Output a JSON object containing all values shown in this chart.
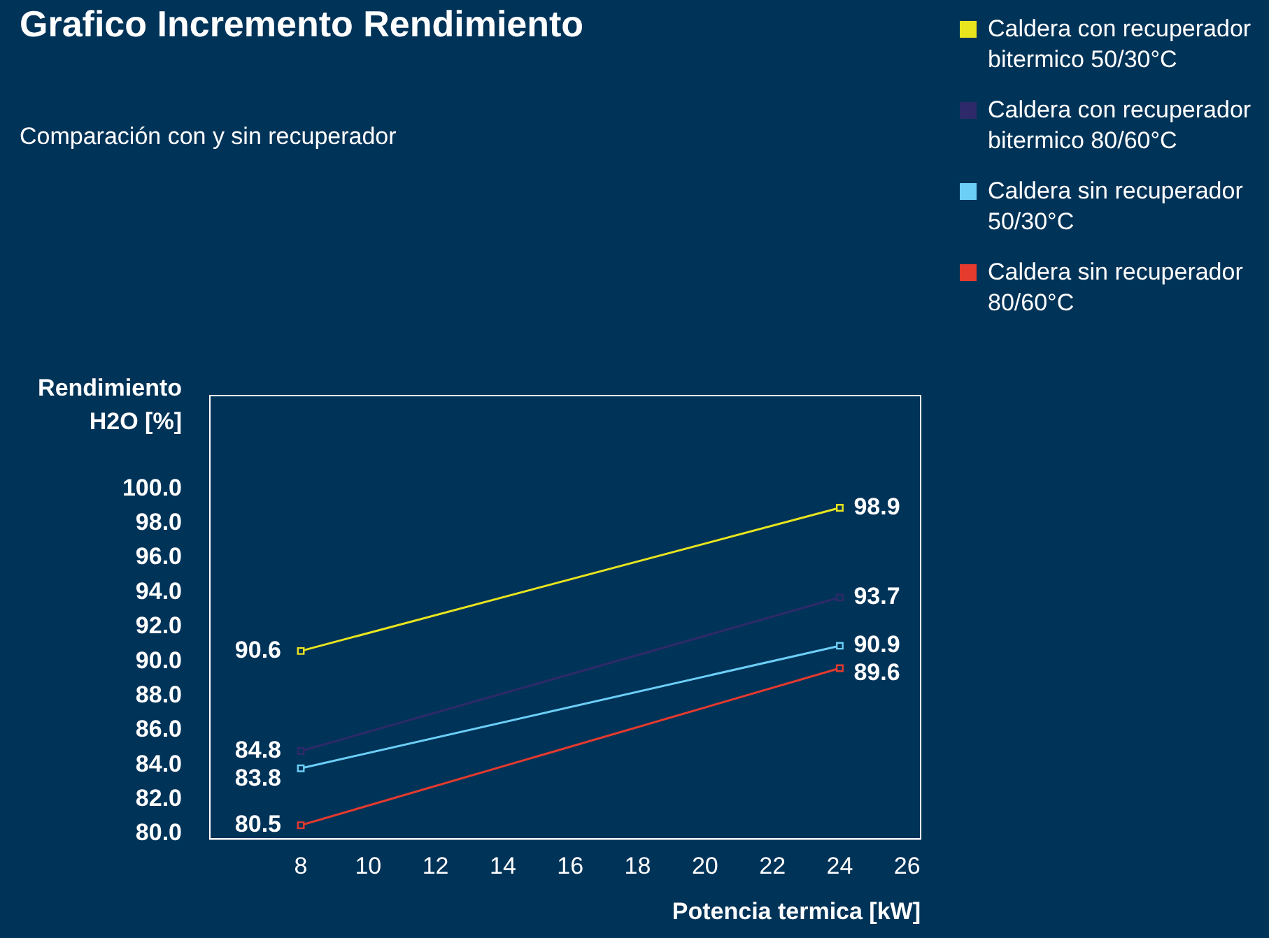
{
  "chart_data": {
    "type": "line",
    "title": "Grafico Incremento Rendimiento",
    "subtitle": "Comparación con y sin recuperador",
    "xlabel": "Potencia termica [kW]",
    "ylabel": "Rendimiento H2O [%]",
    "x": [
      8,
      24
    ],
    "series": [
      {
        "name": "Caldera con recuperador bitermico 50/30°C",
        "color": "#e8e51e",
        "values": [
          90.6,
          98.9
        ]
      },
      {
        "name": "Caldera con recuperador bitermico 80/60°C",
        "color": "#2e2a6a",
        "values": [
          84.8,
          93.7
        ]
      },
      {
        "name": "Caldera sin recuperador 50/30°C",
        "color": "#6ccff6",
        "values": [
          83.8,
          90.9
        ]
      },
      {
        "name": "Caldera sin recuperador 80/60°C",
        "color": "#e53a2e",
        "values": [
          80.5,
          89.6
        ]
      }
    ],
    "xlim": [
      5.3,
      26.4
    ],
    "xticks": [
      8,
      10,
      12,
      14,
      16,
      18,
      20,
      22,
      24,
      26
    ],
    "ylim": [
      79.7,
      105.4
    ],
    "yticks": [
      {
        "value": 80,
        "label": "80.0"
      },
      {
        "value": 82,
        "label": "82.0"
      },
      {
        "value": 84,
        "label": "84.0"
      },
      {
        "value": 86,
        "label": "86.0"
      },
      {
        "value": 88,
        "label": "88.0"
      },
      {
        "value": 90,
        "label": "90.0"
      },
      {
        "value": 92,
        "label": "92.0"
      },
      {
        "value": 94,
        "label": "94.0"
      },
      {
        "value": 96,
        "label": "96.0"
      },
      {
        "value": 98,
        "label": "98.0"
      },
      {
        "value": 100,
        "label": "100.0"
      }
    ],
    "grid": false,
    "legend": "top right",
    "marker": "square",
    "line_style": "solid",
    "data_labels": true
  }
}
